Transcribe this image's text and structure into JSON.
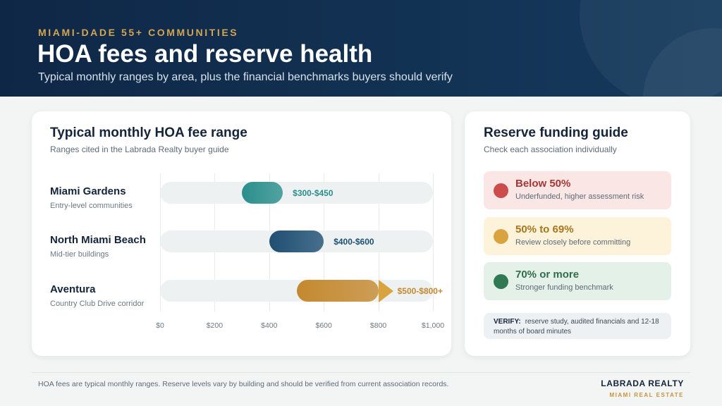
{
  "header": {
    "eyebrow": "MIAMI-DADE 55+ COMMUNITIES",
    "title": "HOA fees and reserve health",
    "subtitle": "Typical monthly ranges by area, plus the financial benchmarks buyers should verify"
  },
  "fee_card": {
    "title": "Typical monthly HOA fee range",
    "subtitle": "Ranges cited in the Labrada Realty buyer guide"
  },
  "chart_data": {
    "type": "bar",
    "title": "Typical monthly HOA fee range",
    "subtitle": "Ranges cited in the Labrada Realty buyer guide",
    "x_ticks": [
      "$0",
      "$200",
      "$400",
      "$600",
      "$800",
      "$1,000"
    ],
    "xlim": [
      0,
      1000
    ],
    "grid": true,
    "rows": [
      {
        "name": "Miami Gardens",
        "desc": "Entry-level communities",
        "low": 300,
        "high": 450,
        "label": "$300-$450",
        "color": "#2a8f8c",
        "open_ended": false
      },
      {
        "name": "North Miami Beach",
        "desc": "Mid-tier buildings",
        "low": 400,
        "high": 600,
        "label": "$400-$600",
        "color": "#1f4f73",
        "open_ended": false
      },
      {
        "name": "Aventura",
        "desc": "Country Club Drive corridor",
        "low": 500,
        "high": 800,
        "label": "$500-$800+",
        "color": "#c4892f",
        "open_ended": true
      }
    ]
  },
  "reserve_card": {
    "title": "Reserve funding guide",
    "subtitle": "Check each association individually",
    "items": [
      {
        "title": "Below 50%",
        "desc": "Underfunded, higher assessment risk",
        "dot": "#cc4b4b",
        "bg": "#fbe6e6",
        "color": "#a63636"
      },
      {
        "title": "50% to 69%",
        "desc": "Review closely before committing",
        "dot": "#d9a33f",
        "bg": "#fdf2da",
        "color": "#a8761d"
      },
      {
        "title": "70% or more",
        "desc": "Stronger funding benchmark",
        "dot": "#2f7a52",
        "bg": "#e4f1e8",
        "color": "#2f6e4b"
      }
    ],
    "verify_label": "VERIFY:",
    "verify_text": "reserve study, audited financials and 12-18 months of board minutes"
  },
  "footer": {
    "note": "HOA fees are typical monthly ranges. Reserve levels vary by building and should be verified from current association records.",
    "brand": "LABRADA REALTY",
    "brand_sub": "MIAMI REAL ESTATE"
  }
}
